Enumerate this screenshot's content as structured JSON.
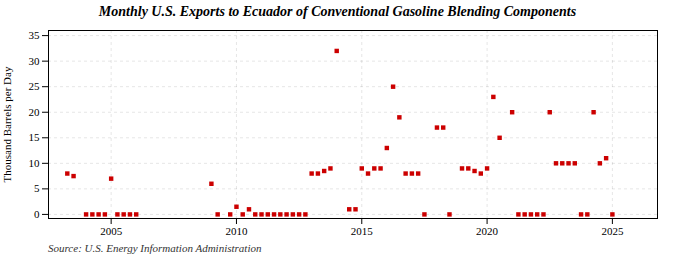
{
  "chart_data": {
    "type": "scatter",
    "title": "Monthly U.S. Exports to Ecuador of Conventional Gasoline Blending Components",
    "y_label": "Thousand Barrels per Day",
    "source": "Source: U.S. Energy Information Administration",
    "color": "#cc0000",
    "marker": "square",
    "grid": true,
    "xlim": [
      2002.5,
      2026.8
    ],
    "ylim": [
      -0.8,
      36
    ],
    "xticks": [
      2005,
      2010,
      2015,
      2020,
      2025
    ],
    "yticks": [
      0,
      5,
      10,
      15,
      20,
      25,
      30,
      35
    ],
    "x": [
      2003.25,
      2003.5,
      2004.0,
      2004.25,
      2004.5,
      2004.75,
      2005.0,
      2005.25,
      2005.5,
      2005.75,
      2006.0,
      2009.0,
      2009.25,
      2009.75,
      2010.0,
      2010.25,
      2010.5,
      2010.75,
      2011.0,
      2011.25,
      2011.5,
      2011.75,
      2012.0,
      2012.25,
      2012.5,
      2012.75,
      2013.0,
      2013.25,
      2013.5,
      2013.75,
      2014.0,
      2014.5,
      2014.75,
      2015.0,
      2015.25,
      2015.5,
      2015.75,
      2016.0,
      2016.25,
      2016.5,
      2016.75,
      2017.0,
      2017.25,
      2017.5,
      2018.0,
      2018.25,
      2018.5,
      2019.0,
      2019.25,
      2019.5,
      2019.75,
      2020.0,
      2020.25,
      2020.5,
      2021.0,
      2021.25,
      2021.5,
      2021.75,
      2022.0,
      2022.25,
      2022.5,
      2022.75,
      2023.0,
      2023.25,
      2023.5,
      2023.75,
      2024.0,
      2024.25,
      2024.5,
      2024.75,
      2025.0
    ],
    "values": [
      8,
      7.5,
      0,
      0,
      0,
      0,
      7,
      0,
      0,
      0,
      0,
      6,
      0,
      0,
      1.5,
      0,
      1,
      0,
      0,
      0,
      0,
      0,
      0,
      0,
      0,
      0,
      8,
      8,
      8.5,
      9,
      32,
      1,
      1,
      9,
      8,
      9,
      9,
      13,
      25,
      19,
      8,
      8,
      8,
      0,
      17,
      17,
      0,
      9,
      9,
      8.5,
      8,
      9,
      23,
      15,
      20,
      0,
      0,
      0,
      0,
      0,
      20,
      10,
      10,
      10,
      10,
      0,
      0,
      20,
      10,
      11,
      0
    ]
  }
}
